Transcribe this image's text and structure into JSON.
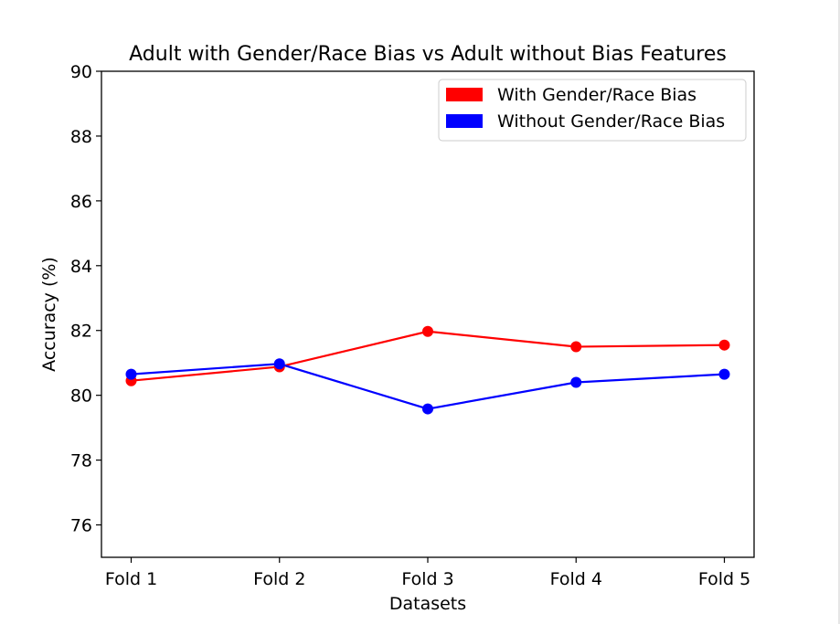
{
  "chart_data": {
    "type": "line",
    "title": "Adult with Gender/Race Bias vs Adult without Bias Features",
    "xlabel": "Datasets",
    "ylabel": "Accuracy (%)",
    "categories": [
      "Fold 1",
      "Fold 2",
      "Fold 3",
      "Fold 4",
      "Fold 5"
    ],
    "ylim": [
      75,
      90
    ],
    "yticks": [
      76,
      78,
      80,
      82,
      84,
      86,
      88,
      90
    ],
    "grid": false,
    "legend_position": "upper-right",
    "series": [
      {
        "name": "With Gender/Race Bias",
        "color": "#ff0000",
        "values": [
          80.45,
          80.88,
          81.97,
          81.5,
          81.55
        ]
      },
      {
        "name": "Without Gender/Race Bias",
        "color": "#0000ff",
        "values": [
          80.65,
          80.97,
          79.58,
          80.4,
          80.65
        ]
      }
    ]
  }
}
